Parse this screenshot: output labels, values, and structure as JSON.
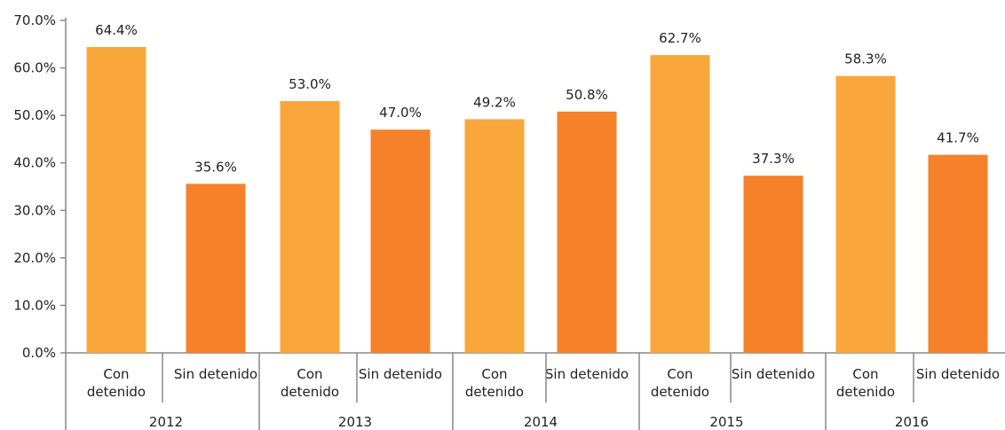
{
  "chart_data": {
    "type": "bar",
    "groups": [
      {
        "year": "2012",
        "bars": [
          {
            "label": "Con detenido",
            "label_lines": [
              "Con",
              "detenido"
            ],
            "value": 64.4,
            "value_label": "64.4%",
            "series": "con"
          },
          {
            "label": "Sin detenido",
            "label_lines": [
              "Sin detenido"
            ],
            "value": 35.6,
            "value_label": "35.6%",
            "series": "sin"
          }
        ]
      },
      {
        "year": "2013",
        "bars": [
          {
            "label": "Con detenido",
            "label_lines": [
              "Con",
              "detenido"
            ],
            "value": 53.0,
            "value_label": "53.0%",
            "series": "con"
          },
          {
            "label": "Sin detenido",
            "label_lines": [
              "Sin detenido"
            ],
            "value": 47.0,
            "value_label": "47.0%",
            "series": "sin"
          }
        ]
      },
      {
        "year": "2014",
        "bars": [
          {
            "label": "Con detenido",
            "label_lines": [
              "Con",
              "detenido"
            ],
            "value": 49.2,
            "value_label": "49.2%",
            "series": "con"
          },
          {
            "label": "Sin detenido",
            "label_lines": [
              "Sin detenido"
            ],
            "value": 50.8,
            "value_label": "50.8%",
            "series": "sin"
          }
        ]
      },
      {
        "year": "2015",
        "bars": [
          {
            "label": "Con detenido",
            "label_lines": [
              "Con",
              "detenido"
            ],
            "value": 62.7,
            "value_label": "62.7%",
            "series": "con"
          },
          {
            "label": "Sin detenido",
            "label_lines": [
              "Sin detenido"
            ],
            "value": 37.3,
            "value_label": "37.3%",
            "series": "sin"
          }
        ]
      },
      {
        "year": "2016",
        "bars": [
          {
            "label": "Con detenido",
            "label_lines": [
              "Con",
              "detenido"
            ],
            "value": 58.3,
            "value_label": "58.3%",
            "series": "con"
          },
          {
            "label": "Sin detenido",
            "label_lines": [
              "Sin detenido"
            ],
            "value": 41.7,
            "value_label": "41.7%",
            "series": "sin"
          }
        ]
      }
    ],
    "yticks": [
      "70.0%",
      "60.0%",
      "50.0%",
      "40.0%",
      "30.0%",
      "20.0%",
      "10.0%",
      "0.0%"
    ],
    "ylim": [
      0,
      70
    ],
    "grid": false,
    "legend": "none",
    "colors": {
      "con": "#F9A73A",
      "sin": "#F5822A",
      "axis": "#888888",
      "text": "#222222"
    }
  }
}
